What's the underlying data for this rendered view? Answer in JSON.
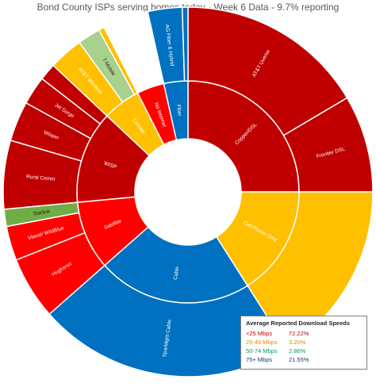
{
  "chart_data": {
    "type": "sunburst",
    "title": "Bond County ISPs serving homes today - Week 6 Data - 9.7% reporting",
    "colors": {
      "copper": "#c00000",
      "wisp": "#c00000",
      "no_internet": "#ff0000",
      "satellite": "#ff0000",
      "cable": "#0070c0",
      "fiber": "#0070c0",
      "cellular": "#ffc000",
      "cell_phone_only": "#ffc000",
      "tmobile": "#a9d18e",
      "starlink": "#70ad47"
    },
    "inner_ring": [
      {
        "label": "Copper/DSL",
        "value": 25.0,
        "color": "#c00000"
      },
      {
        "label": "Cell Phone Only",
        "value": 16.0,
        "color": "#ffc000"
      },
      {
        "label": "Cable",
        "value": 22.5,
        "color": "#0070c0"
      },
      {
        "label": "Satellite",
        "value": 10.0,
        "color": "#ff0000"
      },
      {
        "label": "WISP",
        "value": 13.5,
        "color": "#c00000"
      },
      {
        "label": "Cellular",
        "value": 5.5,
        "color": "#ffc000"
      },
      {
        "label": "No Internet",
        "value": 4.0,
        "color": "#ff0000"
      },
      {
        "label": "Fiber",
        "value": 3.5,
        "color": "#0070c0"
      }
    ],
    "outer_ring": [
      {
        "label": "AT&T Uverse",
        "value": 16.5,
        "color": "#c00000"
      },
      {
        "label": "Frontier DSL",
        "value": 8.5,
        "color": "#c00000"
      },
      {
        "label": "",
        "value": 16.0,
        "color": "#ffc000"
      },
      {
        "label": "Sparklight Cable",
        "value": 22.5,
        "color": "#0070c0"
      },
      {
        "label": "Hughsnet",
        "value": 5.5,
        "color": "#ff0000"
      },
      {
        "label": "Viasat/ WildBlue",
        "value": 3.0,
        "color": "#ff0000"
      },
      {
        "label": "Starlink",
        "value": 1.5,
        "color": "#70ad47"
      },
      {
        "label": "Rural Comm",
        "value": 6.0,
        "color": "#c00000"
      },
      {
        "label": "Wisper",
        "value": 3.5,
        "color": "#c00000"
      },
      {
        "label": "Jet Surge",
        "value": 2.5,
        "color": "#c00000"
      },
      {
        "label": "",
        "value": 1.5,
        "color": "#c00000"
      },
      {
        "label": "AT&T Wireless",
        "value": 3.0,
        "color": "#ffc000"
      },
      {
        "label": "T-Mobile",
        "value": 2.0,
        "color": "#a9d18e"
      },
      {
        "label": "",
        "value": 0.5,
        "color": "#ffc000"
      },
      {
        "label": "",
        "value": 4.0,
        "color": "#ffffff"
      },
      {
        "label": "AG Fiber & Hybrid",
        "value": 3.0,
        "color": "#0070c0"
      },
      {
        "label": "",
        "value": 0.5,
        "color": "#0070c0"
      }
    ],
    "legend": {
      "title": "Average Reported Download Speeds",
      "placement": "bottom-right",
      "items": [
        {
          "label": "<25 Mbps",
          "value": "72.22%",
          "color": "#c00000"
        },
        {
          "label": "25-49 Mbps",
          "value": "3.20%",
          "color": "#e58a00"
        },
        {
          "label": "50-74 Mbps",
          "value": "2.86%",
          "color": "#00a050"
        },
        {
          "label": "75+ Mbps",
          "value": "21.55%",
          "color": "#1f3864"
        }
      ]
    }
  }
}
